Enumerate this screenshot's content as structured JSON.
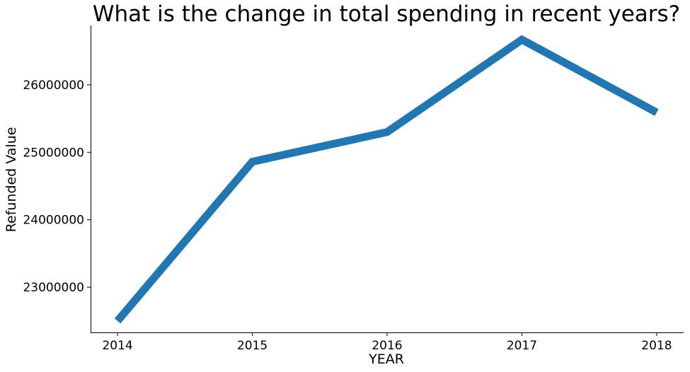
{
  "chart_data": {
    "type": "line",
    "title": "What is the change in total spending in recent years?",
    "xlabel": "YEAR",
    "ylabel": "Refunded Value",
    "x": [
      "2014",
      "2015",
      "2016",
      "2017",
      "2018"
    ],
    "series": [
      {
        "values": [
          22500000,
          24860000,
          25300000,
          26670000,
          25590000
        ],
        "color": "#1f77b4"
      }
    ],
    "yticks": [
      23000000,
      24000000,
      25000000,
      26000000
    ],
    "ytick_labels": [
      "23000000",
      "24000000",
      "25000000",
      "26000000"
    ],
    "ylim": [
      22330000,
      26880000
    ],
    "xlim": [
      -0.2,
      4.2
    ],
    "grid": false,
    "legend": false
  }
}
